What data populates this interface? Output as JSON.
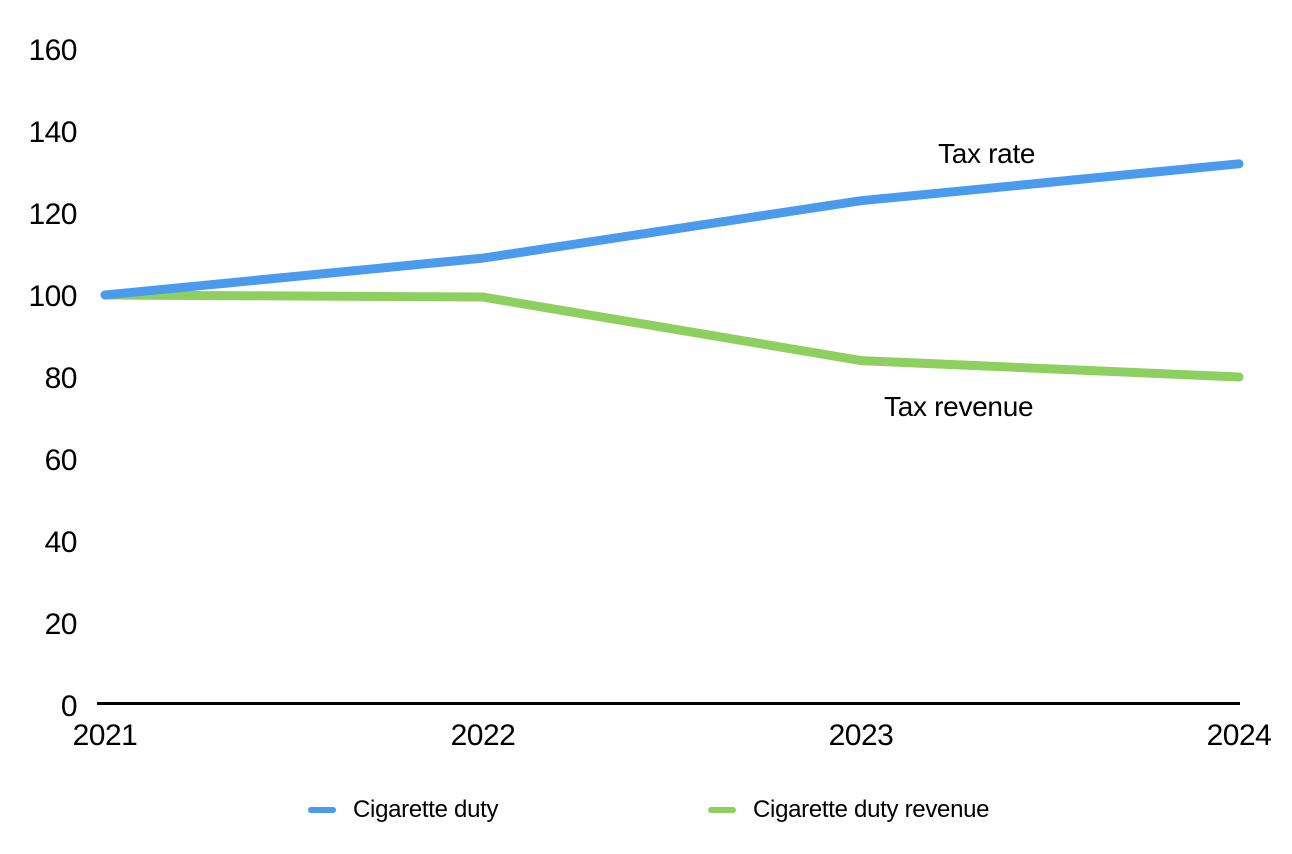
{
  "chart_data": {
    "type": "line",
    "title": "",
    "xlabel": "",
    "ylabel": "",
    "categories": [
      "2021",
      "2022",
      "2023",
      "2024"
    ],
    "series": [
      {
        "name": "Cigarette duty",
        "annotation": "Tax rate",
        "values": [
          100,
          109,
          123,
          132
        ],
        "color": "#4A9BED"
      },
      {
        "name": "Cigarette duty revenue",
        "annotation": "Tax revenue",
        "values": [
          100,
          99.5,
          84,
          80
        ],
        "color": "#8ED05F"
      }
    ],
    "ylim": [
      0,
      160
    ],
    "yticks": [
      0,
      20,
      40,
      60,
      80,
      100,
      120,
      140,
      160
    ],
    "grid": false,
    "legend_position": "bottom",
    "axis_color": "#000000",
    "text_color": "#000000"
  }
}
